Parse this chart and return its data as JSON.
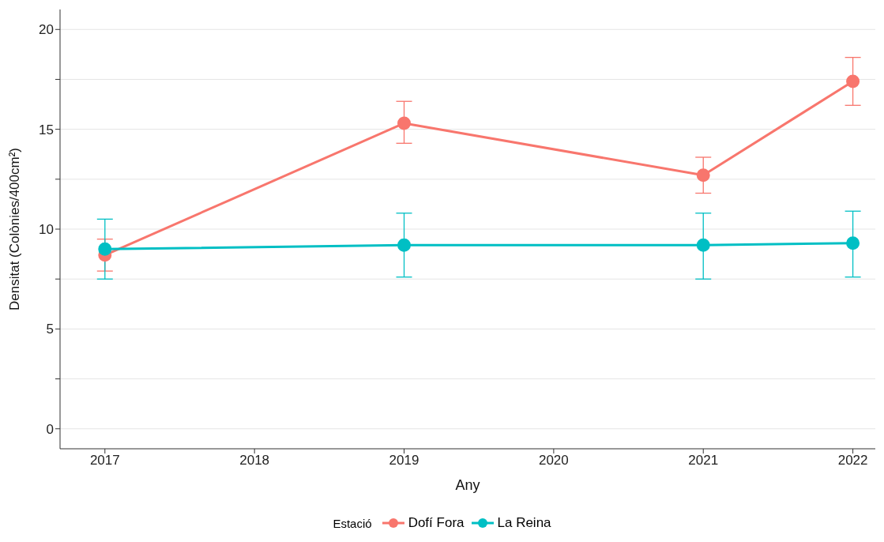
{
  "chart_data": {
    "type": "line",
    "xlabel": "Any",
    "ylabel": "Densitat (Colònies/400cm²)",
    "legend_title": "Estació",
    "x": [
      2017,
      2019,
      2021,
      2022
    ],
    "series": [
      {
        "name": "Dofí Fora",
        "color": "#f8766d",
        "values": [
          8.7,
          15.3,
          12.7,
          17.4
        ],
        "errors": [
          [
            7.9,
            9.5
          ],
          [
            14.3,
            16.4
          ],
          [
            11.8,
            13.6
          ],
          [
            16.2,
            18.6
          ]
        ]
      },
      {
        "name": "La Reina",
        "color": "#00bfc4",
        "values": [
          9.0,
          9.2,
          9.2,
          9.3
        ],
        "errors": [
          [
            7.5,
            10.5
          ],
          [
            7.6,
            10.8
          ],
          [
            7.5,
            10.8
          ],
          [
            7.6,
            10.9
          ]
        ]
      }
    ],
    "xlim": [
      2016.7,
      2022.15
    ],
    "xticks": [
      2017,
      2018,
      2019,
      2020,
      2021,
      2022
    ],
    "ylim": [
      -1,
      21
    ],
    "yticks": [
      0,
      {
        "value": 2.5,
        "label": null
      },
      5,
      {
        "value": 7.5,
        "label": null
      },
      10,
      {
        "value": 12.5,
        "label": null
      },
      15,
      {
        "value": 17.5,
        "label": null
      },
      20
    ],
    "grid": "y",
    "legend": "bottom",
    "marker": "circle",
    "line_style": "solid"
  }
}
